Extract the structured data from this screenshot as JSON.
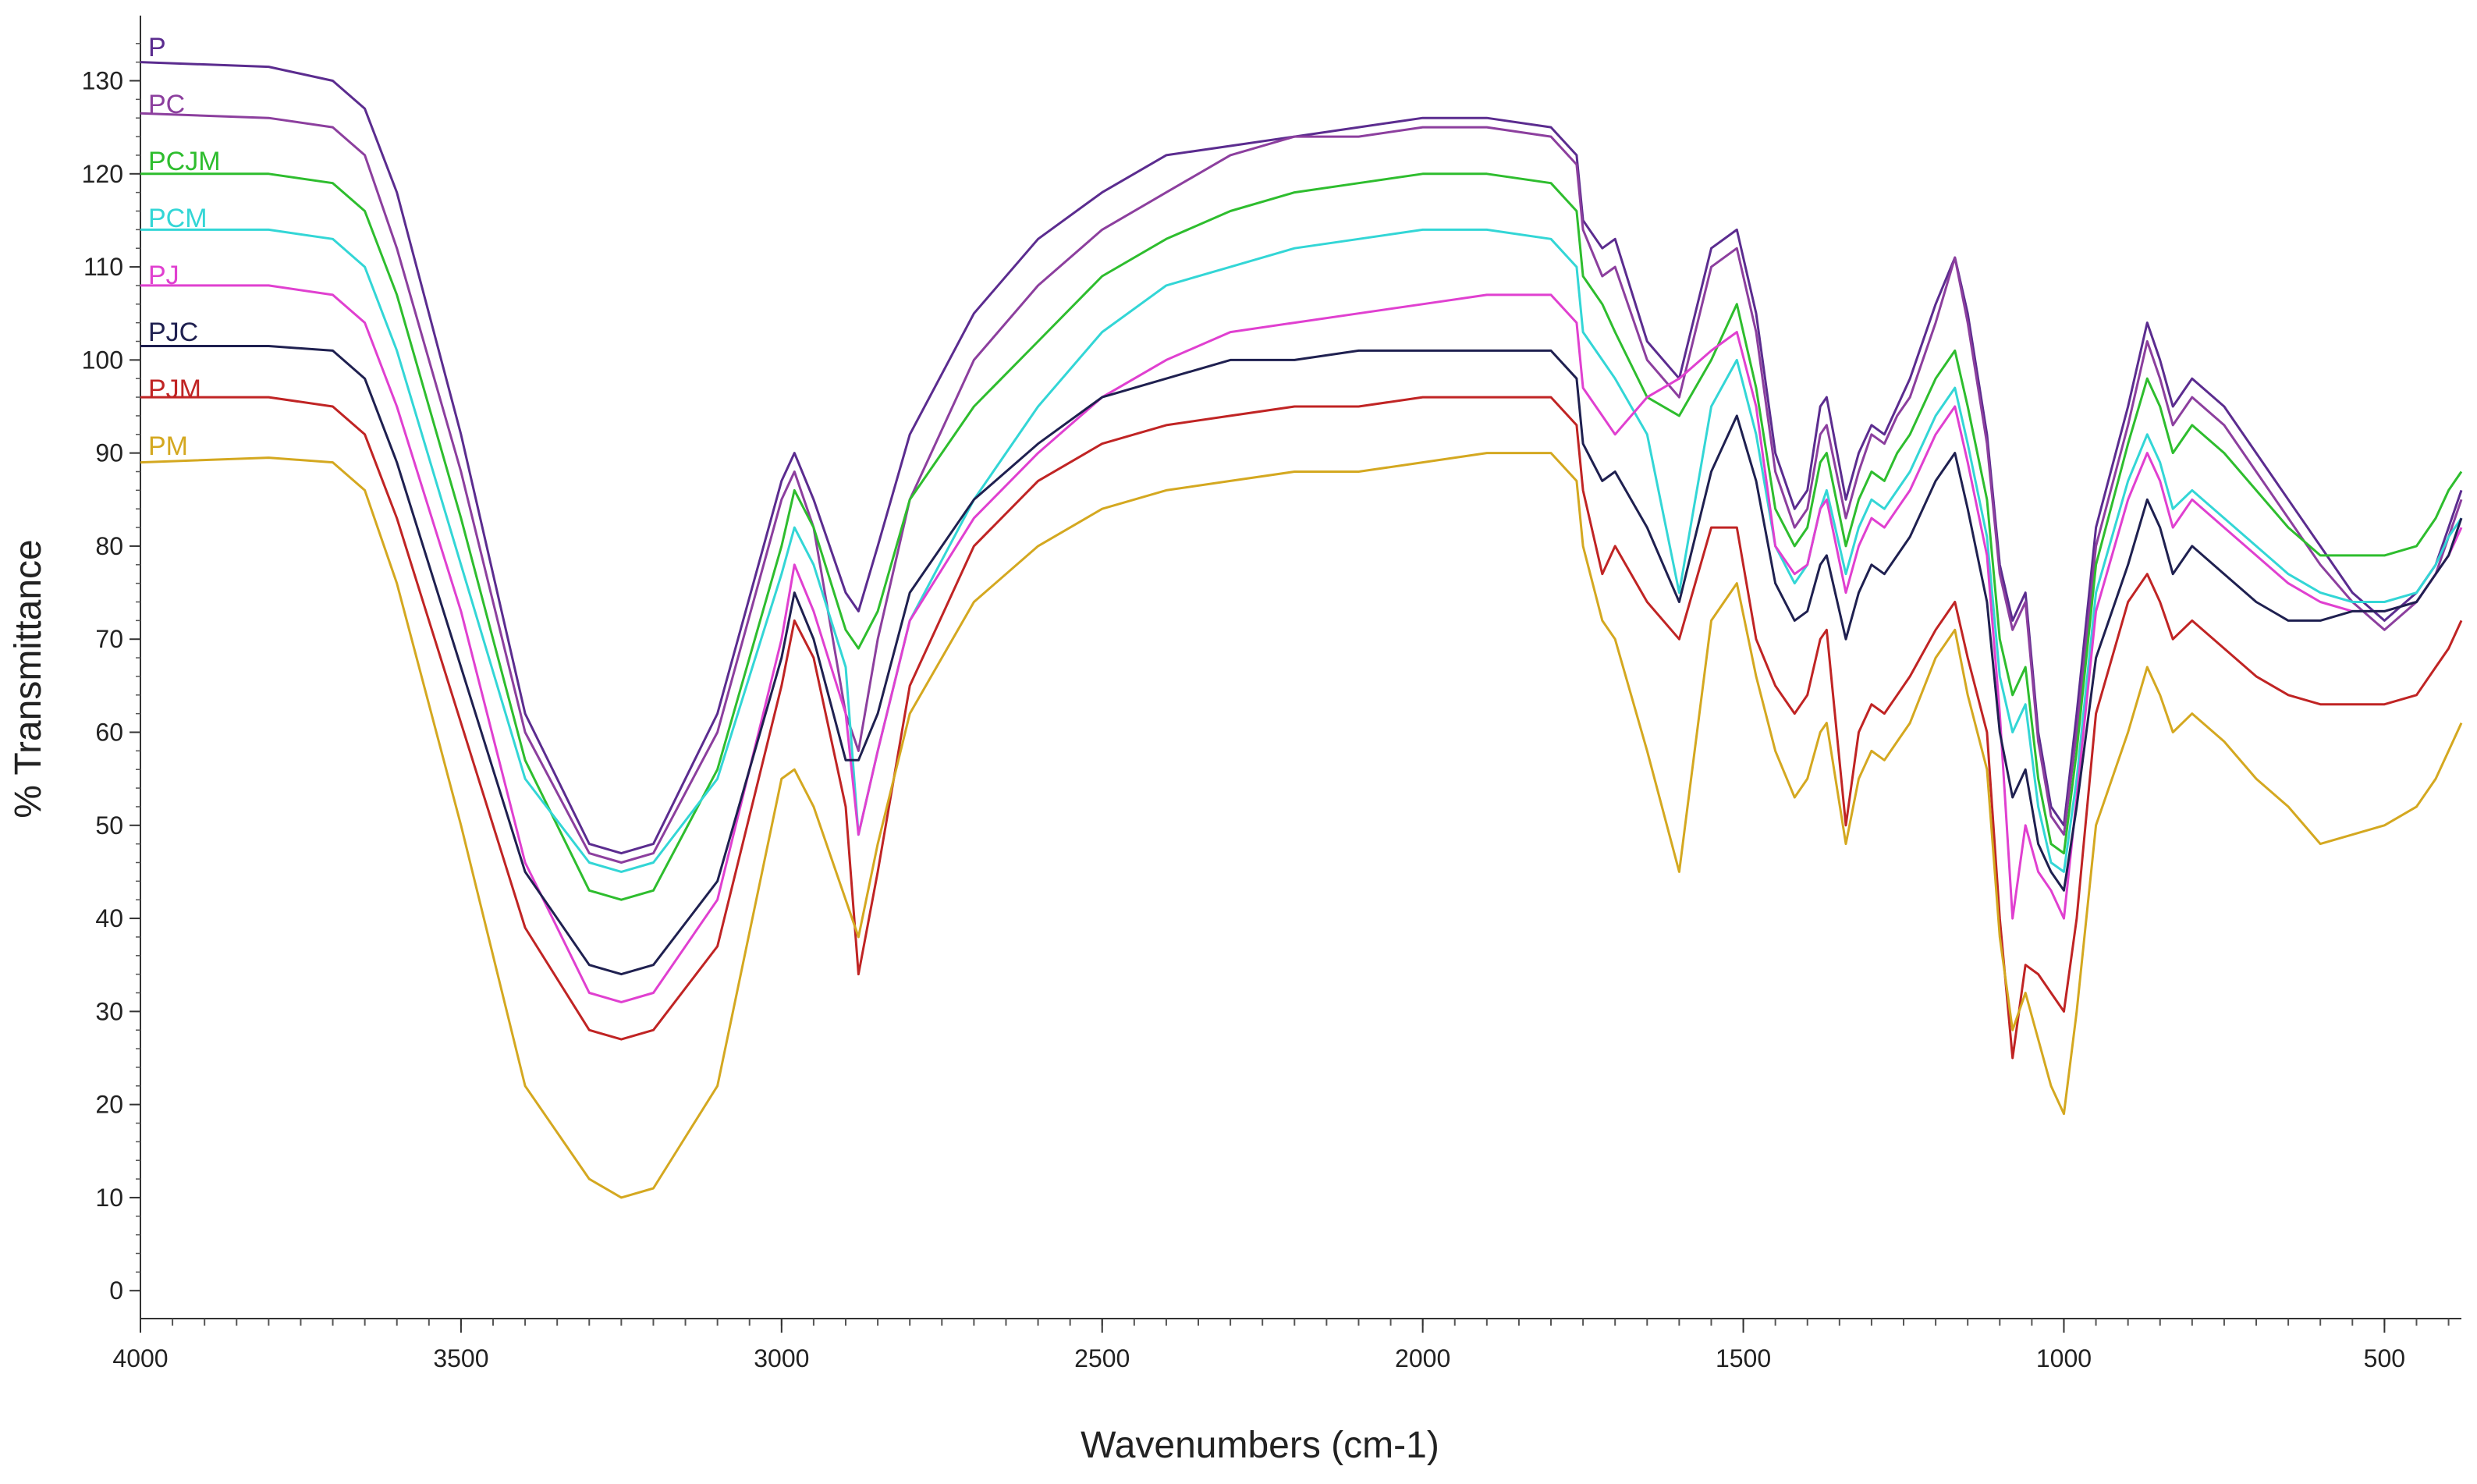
{
  "chart_data": {
    "type": "line",
    "title": "",
    "xlabel": "Wavenumbers (cm-1)",
    "ylabel": "% Transmittance",
    "xlim": [
      4000,
      380
    ],
    "ylim": [
      -3,
      137
    ],
    "x_reversed": true,
    "grid": false,
    "legend_placement": "top-left",
    "x_ticks": [
      4000,
      3500,
      3000,
      2500,
      2000,
      1500,
      1000,
      500
    ],
    "y_ticks": [
      0,
      10,
      20,
      30,
      40,
      50,
      60,
      70,
      80,
      90,
      100,
      110,
      120,
      130
    ],
    "x": [
      4000,
      3800,
      3700,
      3650,
      3600,
      3500,
      3400,
      3300,
      3250,
      3200,
      3100,
      3000,
      2980,
      2950,
      2900,
      2880,
      2850,
      2800,
      2700,
      2600,
      2500,
      2400,
      2300,
      2200,
      2100,
      2000,
      1900,
      1800,
      1760,
      1750,
      1720,
      1700,
      1650,
      1600,
      1550,
      1510,
      1480,
      1450,
      1420,
      1400,
      1380,
      1370,
      1340,
      1320,
      1300,
      1280,
      1260,
      1240,
      1200,
      1170,
      1150,
      1120,
      1100,
      1080,
      1060,
      1040,
      1020,
      1000,
      980,
      950,
      900,
      870,
      850,
      830,
      800,
      750,
      700,
      650,
      600,
      550,
      500,
      450,
      420,
      400,
      380
    ],
    "series": [
      {
        "name": "P",
        "color": "#5b2c8f",
        "values": [
          132,
          131.5,
          130,
          127,
          118,
          92,
          62,
          48,
          47,
          48,
          62,
          87,
          90,
          85,
          75,
          73,
          80,
          92,
          105,
          113,
          118,
          122,
          123,
          124,
          125,
          126,
          126,
          125,
          122,
          115,
          112,
          113,
          102,
          98,
          112,
          114,
          105,
          90,
          84,
          86,
          95,
          96,
          85,
          90,
          93,
          92,
          95,
          98,
          106,
          111,
          105,
          92,
          78,
          72,
          75,
          60,
          52,
          50,
          62,
          82,
          95,
          104,
          100,
          95,
          98,
          95,
          90,
          85,
          80,
          75,
          72,
          75,
          78,
          82,
          86
        ]
      },
      {
        "name": "PC",
        "color": "#8c3f9e",
        "values": [
          126.5,
          126,
          125,
          122,
          112,
          88,
          60,
          47,
          46,
          47,
          60,
          85,
          88,
          82,
          62,
          58,
          70,
          85,
          100,
          108,
          114,
          118,
          122,
          124,
          124,
          125,
          125,
          124,
          121,
          114,
          109,
          110,
          100,
          96,
          110,
          112,
          103,
          88,
          82,
          84,
          92,
          93,
          83,
          88,
          92,
          91,
          94,
          96,
          104,
          111,
          104,
          91,
          77,
          71,
          74,
          59,
          51,
          49,
          60,
          80,
          93,
          102,
          98,
          93,
          96,
          93,
          88,
          83,
          78,
          74,
          71,
          74,
          77,
          81,
          85
        ]
      },
      {
        "name": "PCJM",
        "color": "#2ebd2e",
        "values": [
          120,
          120,
          119,
          116,
          107,
          83,
          57,
          43,
          42,
          43,
          56,
          80,
          86,
          82,
          71,
          69,
          73,
          85,
          95,
          102,
          109,
          113,
          116,
          118,
          119,
          120,
          120,
          119,
          116,
          109,
          106,
          103,
          96,
          94,
          100,
          106,
          97,
          84,
          80,
          82,
          89,
          90,
          80,
          85,
          88,
          87,
          90,
          92,
          98,
          101,
          95,
          85,
          70,
          64,
          67,
          55,
          48,
          47,
          58,
          78,
          91,
          98,
          95,
          90,
          93,
          90,
          86,
          82,
          79,
          79,
          79,
          80,
          83,
          86,
          88
        ]
      },
      {
        "name": "PCM",
        "color": "#33d6d6",
        "values": [
          114,
          114,
          113,
          110,
          101,
          78,
          55,
          46,
          45,
          46,
          55,
          77,
          82,
          78,
          67,
          49,
          58,
          72,
          85,
          95,
          103,
          108,
          110,
          112,
          113,
          114,
          114,
          113,
          110,
          103,
          100,
          98,
          92,
          75,
          95,
          100,
          92,
          80,
          76,
          78,
          84,
          86,
          77,
          82,
          85,
          84,
          86,
          88,
          94,
          97,
          91,
          81,
          66,
          60,
          63,
          52,
          46,
          45,
          55,
          75,
          87,
          92,
          89,
          84,
          86,
          83,
          80,
          77,
          75,
          74,
          74,
          75,
          78,
          81,
          83
        ]
      },
      {
        "name": "PJ",
        "color": "#e040d0",
        "values": [
          108,
          108,
          107,
          104,
          95,
          73,
          46,
          32,
          31,
          32,
          42,
          70,
          78,
          73,
          62,
          49,
          58,
          72,
          83,
          90,
          96,
          100,
          103,
          104,
          105,
          106,
          107,
          107,
          104,
          97,
          94,
          92,
          96,
          98,
          101,
          103,
          95,
          80,
          77,
          78,
          84,
          85,
          75,
          80,
          83,
          82,
          84,
          86,
          92,
          95,
          89,
          79,
          62,
          40,
          50,
          45,
          43,
          40,
          53,
          73,
          85,
          90,
          87,
          82,
          85,
          82,
          79,
          76,
          74,
          73,
          73,
          74,
          77,
          79,
          82
        ]
      },
      {
        "name": "PJC",
        "color": "#1f2050",
        "values": [
          101.5,
          101.5,
          101,
          98,
          89,
          67,
          45,
          35,
          34,
          35,
          44,
          68,
          75,
          70,
          57,
          57,
          62,
          75,
          85,
          91,
          96,
          98,
          100,
          100,
          101,
          101,
          101,
          101,
          98,
          91,
          87,
          88,
          82,
          74,
          88,
          94,
          87,
          76,
          72,
          73,
          78,
          79,
          70,
          75,
          78,
          77,
          79,
          81,
          87,
          90,
          84,
          74,
          60,
          53,
          56,
          48,
          45,
          43,
          52,
          68,
          78,
          85,
          82,
          77,
          80,
          77,
          74,
          72,
          72,
          73,
          73,
          74,
          77,
          79,
          83
        ]
      },
      {
        "name": "PJM",
        "color": "#c02424",
        "values": [
          96,
          96,
          95,
          92,
          83,
          61,
          39,
          28,
          27,
          28,
          37,
          65,
          72,
          68,
          52,
          34,
          45,
          65,
          80,
          87,
          91,
          93,
          94,
          95,
          95,
          96,
          96,
          96,
          93,
          86,
          77,
          80,
          74,
          70,
          82,
          82,
          70,
          65,
          62,
          64,
          70,
          71,
          50,
          60,
          63,
          62,
          64,
          66,
          71,
          74,
          68,
          60,
          40,
          25,
          35,
          34,
          32,
          30,
          40,
          62,
          74,
          77,
          74,
          70,
          72,
          69,
          66,
          64,
          63,
          63,
          63,
          64,
          67,
          69,
          72
        ]
      },
      {
        "name": "PM",
        "color": "#d4a820",
        "values": [
          89,
          89.5,
          89,
          86,
          76,
          50,
          22,
          12,
          10,
          11,
          22,
          55,
          56,
          52,
          42,
          38,
          48,
          62,
          74,
          80,
          84,
          86,
          87,
          88,
          88,
          89,
          90,
          90,
          87,
          80,
          72,
          70,
          58,
          45,
          72,
          76,
          66,
          58,
          53,
          55,
          60,
          61,
          48,
          55,
          58,
          57,
          59,
          61,
          68,
          71,
          64,
          56,
          38,
          28,
          32,
          27,
          22,
          19,
          30,
          50,
          60,
          67,
          64,
          60,
          62,
          59,
          55,
          52,
          48,
          49,
          50,
          52,
          55,
          58,
          61
        ]
      }
    ]
  }
}
